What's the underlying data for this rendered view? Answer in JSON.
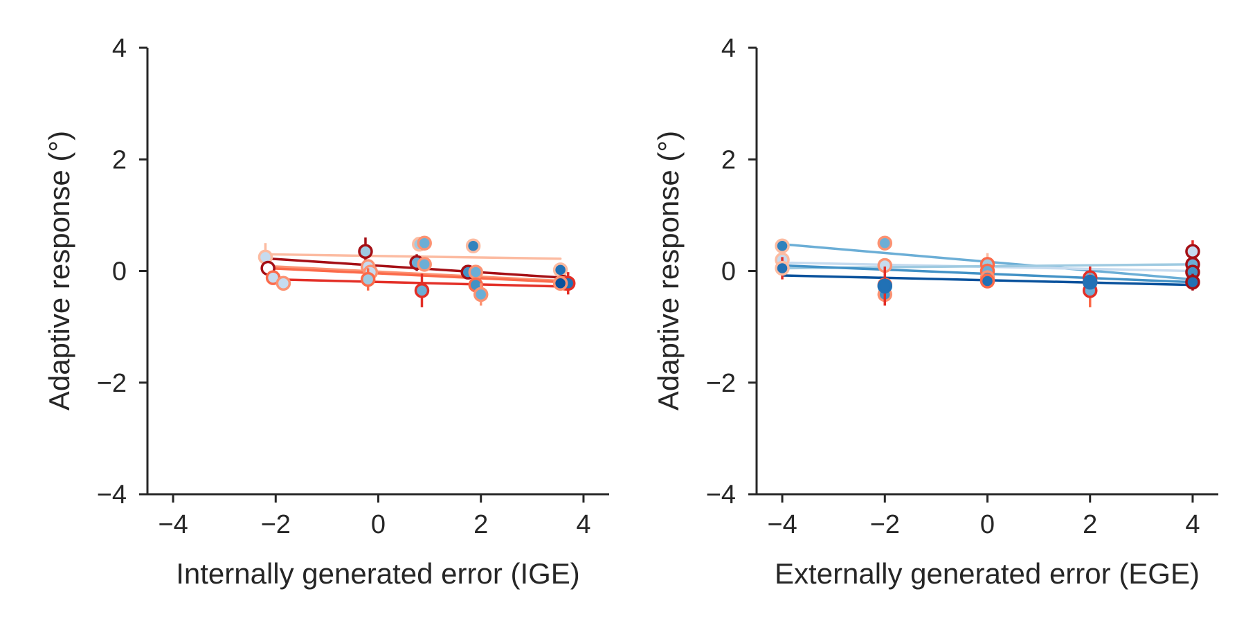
{
  "chart_data": [
    {
      "type": "scatter",
      "xlabel": "Internally generated error (IGE)",
      "ylabel": "Adaptive response (°)",
      "xlim": [
        -4.5,
        4.5
      ],
      "ylim": [
        -4,
        4
      ],
      "xticks": [
        -4,
        -2,
        0,
        2,
        4
      ],
      "yticks": [
        -4,
        -2,
        0,
        2,
        4
      ],
      "xtick_labels": [
        "−4",
        "−2",
        "0",
        "2",
        "4"
      ],
      "ytick_labels": [
        "−4",
        "−2",
        "0",
        "2",
        "4"
      ],
      "grid": false,
      "lines": [
        {
          "color": "#fcbba1",
          "x": [
            -2.2,
            3.55
          ],
          "y": [
            0.3,
            0.22
          ]
        },
        {
          "color": "#a50f15",
          "x": [
            -2.1,
            3.6
          ],
          "y": [
            0.22,
            -0.12
          ]
        },
        {
          "color": "#fc9272",
          "x": [
            -2.0,
            3.65
          ],
          "y": [
            0.08,
            -0.18
          ]
        },
        {
          "color": "#fb6a4a",
          "x": [
            -2.15,
            3.6
          ],
          "y": [
            0.05,
            -0.2
          ]
        },
        {
          "color": "#e32f27",
          "x": [
            -2.0,
            3.7
          ],
          "y": [
            -0.15,
            -0.28
          ]
        }
      ],
      "points": [
        {
          "x": -2.2,
          "y": 0.25,
          "fill": "#c6dbef",
          "edge": "#fcbba1",
          "err": 0.25,
          "errc": "#fcbba1"
        },
        {
          "x": -2.15,
          "y": 0.05,
          "fill": "#ffffff",
          "edge": "#a50f15",
          "err": 0,
          "errc": "#a50f15"
        },
        {
          "x": -2.05,
          "y": -0.12,
          "fill": "#c6dbef",
          "edge": "#fb6a4a",
          "err": 0,
          "errc": "#fb6a4a"
        },
        {
          "x": -1.85,
          "y": -0.22,
          "fill": "#c6dbef",
          "edge": "#fc9272",
          "err": 0,
          "errc": "#fc9272"
        },
        {
          "x": -0.25,
          "y": 0.35,
          "fill": "#9ecae1",
          "edge": "#a50f15",
          "err": 0.25,
          "errc": "#a50f15"
        },
        {
          "x": -0.2,
          "y": 0.08,
          "fill": "#c6dbef",
          "edge": "#fc9272",
          "err": 0,
          "errc": "#fc9272"
        },
        {
          "x": -0.15,
          "y": -0.02,
          "fill": "#c6dbef",
          "edge": "#fc9272",
          "err": 0,
          "errc": "#fc9272"
        },
        {
          "x": -0.2,
          "y": -0.15,
          "fill": "#9ecae1",
          "edge": "#fb6a4a",
          "err": 0.2,
          "errc": "#fb6a4a"
        },
        {
          "x": 0.75,
          "y": 0.15,
          "fill": "#6baed6",
          "edge": "#a50f15",
          "err": 0.15,
          "errc": "#a50f15"
        },
        {
          "x": 0.8,
          "y": 0.48,
          "fill": "#9ecae1",
          "edge": "#fcbba1",
          "err": 0,
          "errc": "#fcbba1"
        },
        {
          "x": 0.9,
          "y": 0.5,
          "fill": "#6baed6",
          "edge": "#fc9272",
          "err": 0,
          "errc": "#fc9272"
        },
        {
          "x": 0.9,
          "y": 0.12,
          "fill": "#6baed6",
          "edge": "#fc9272",
          "err": 0,
          "errc": "#fc9272"
        },
        {
          "x": 0.85,
          "y": -0.35,
          "fill": "#6baed6",
          "edge": "#e32f27",
          "err": 0.3,
          "errc": "#e32f27"
        },
        {
          "x": 1.85,
          "y": 0.45,
          "fill": "#3182bd",
          "edge": "#fcbba1",
          "err": 0,
          "errc": "#fcbba1"
        },
        {
          "x": 1.75,
          "y": -0.02,
          "fill": "#4292c6",
          "edge": "#a50f15",
          "err": 0.1,
          "errc": "#a50f15"
        },
        {
          "x": 1.9,
          "y": -0.02,
          "fill": "#6baed6",
          "edge": "#fc9272",
          "err": 0,
          "errc": "#fc9272"
        },
        {
          "x": 1.9,
          "y": -0.25,
          "fill": "#4292c6",
          "edge": "#fb6a4a",
          "err": 0,
          "errc": "#fb6a4a"
        },
        {
          "x": 2.0,
          "y": -0.42,
          "fill": "#6baed6",
          "edge": "#fc9272",
          "err": 0.2,
          "errc": "#fc9272"
        },
        {
          "x": 3.55,
          "y": 0.02,
          "fill": "#2171b5",
          "edge": "#fcbba1",
          "err": 0.05,
          "errc": "#fcbba1"
        },
        {
          "x": 3.6,
          "y": -0.2,
          "fill": "#2171b5",
          "edge": "#a50f15",
          "err": 0.1,
          "errc": "#a50f15"
        },
        {
          "x": 3.65,
          "y": -0.22,
          "fill": "#2171b5",
          "edge": "#fb6a4a",
          "err": 0.05,
          "errc": "#fb6a4a"
        },
        {
          "x": 3.7,
          "y": -0.22,
          "fill": "#2171b5",
          "edge": "#e32f27",
          "err": 0.2,
          "errc": "#e32f27"
        },
        {
          "x": 3.55,
          "y": -0.22,
          "fill": "#08519c",
          "edge": "#fc9272",
          "err": 0,
          "errc": "#fc9272"
        }
      ]
    },
    {
      "type": "scatter",
      "xlabel": "Externally generated error (EGE)",
      "ylabel": "Adaptive response (°)",
      "xlim": [
        -4.5,
        4.5
      ],
      "ylim": [
        -4,
        4
      ],
      "xticks": [
        -4,
        -2,
        0,
        2,
        4
      ],
      "yticks": [
        -4,
        -2,
        0,
        2,
        4
      ],
      "xtick_labels": [
        "−4",
        "−2",
        "0",
        "2",
        "4"
      ],
      "ytick_labels": [
        "−4",
        "−2",
        "0",
        "2",
        "4"
      ],
      "grid": false,
      "lines": [
        {
          "color": "#6baed6",
          "x": [
            -4,
            4
          ],
          "y": [
            0.48,
            -0.15
          ]
        },
        {
          "color": "#c6dbef",
          "x": [
            -4,
            4
          ],
          "y": [
            0.15,
            0.0
          ]
        },
        {
          "color": "#9ecae1",
          "x": [
            -4,
            4
          ],
          "y": [
            0.05,
            0.12
          ]
        },
        {
          "color": "#4292c6",
          "x": [
            -4,
            4
          ],
          "y": [
            0.1,
            -0.2
          ]
        },
        {
          "color": "#08519c",
          "x": [
            -4,
            4
          ],
          "y": [
            -0.08,
            -0.25
          ]
        }
      ],
      "points": [
        {
          "x": -4,
          "y": 0.45,
          "fill": "#3182bd",
          "edge": "#fcbba1",
          "err": 0.05,
          "errc": "#fcbba1"
        },
        {
          "x": -4,
          "y": 0.2,
          "fill": "#c6dbef",
          "edge": "#fcbba1",
          "err": 0,
          "errc": "#fcbba1"
        },
        {
          "x": -4,
          "y": 0.05,
          "fill": "#2171b5",
          "edge": "#fcbba1",
          "err": 0.2,
          "errc": "#e32f27"
        },
        {
          "x": -2,
          "y": 0.5,
          "fill": "#6baed6",
          "edge": "#fc9272",
          "err": 0,
          "errc": "#fc9272"
        },
        {
          "x": -2,
          "y": 0.1,
          "fill": "#c6dbef",
          "edge": "#fc9272",
          "err": 0,
          "errc": "#fc9272"
        },
        {
          "x": -2,
          "y": -0.25,
          "fill": "#4292c6",
          "edge": "#fb6a4a",
          "err": 0.2,
          "errc": "#fb6a4a"
        },
        {
          "x": -2,
          "y": -0.42,
          "fill": "#4292c6",
          "edge": "#fc9272",
          "err": 0.2,
          "errc": "#fb6a4a"
        },
        {
          "x": -2,
          "y": -0.27,
          "fill": "#2171b5",
          "edge": "#2171b5",
          "err": 0.35,
          "errc": "#e32f27"
        },
        {
          "x": 0,
          "y": 0.12,
          "fill": "#9ecae1",
          "edge": "#fb6a4a",
          "err": 0.2,
          "errc": "#fcbba1"
        },
        {
          "x": 0,
          "y": 0.0,
          "fill": "#6baed6",
          "edge": "#fb6a4a",
          "err": 0,
          "errc": "#fb6a4a"
        },
        {
          "x": 0,
          "y": -0.12,
          "fill": "#4292c6",
          "edge": "#fc9272",
          "err": 0,
          "errc": "#fc9272"
        },
        {
          "x": 0,
          "y": -0.18,
          "fill": "#2171b5",
          "edge": "#fb6a4a",
          "err": 0.1,
          "errc": "#fb6a4a"
        },
        {
          "x": 2,
          "y": -0.12,
          "fill": "#6baed6",
          "edge": "#e32f27",
          "err": 0.2,
          "errc": "#e32f27"
        },
        {
          "x": 2,
          "y": -0.2,
          "fill": "#4292c6",
          "edge": "#e32f27",
          "err": 0,
          "errc": "#e32f27"
        },
        {
          "x": 2,
          "y": -0.35,
          "fill": "#6baed6",
          "edge": "#e32f27",
          "err": 0.3,
          "errc": "#fb6a4a"
        },
        {
          "x": 2,
          "y": -0.2,
          "fill": "#2171b5",
          "edge": "#2171b5",
          "err": 0,
          "errc": "#2171b5"
        },
        {
          "x": 4,
          "y": 0.35,
          "fill": "#c6dbef",
          "edge": "#a50f15",
          "err": 0.2,
          "errc": "#e32f27"
        },
        {
          "x": 4,
          "y": 0.12,
          "fill": "#6baed6",
          "edge": "#a50f15",
          "err": 0,
          "errc": "#a50f15"
        },
        {
          "x": 4,
          "y": -0.02,
          "fill": "#4292c6",
          "edge": "#a50f15",
          "err": 0,
          "errc": "#a50f15"
        },
        {
          "x": 4,
          "y": -0.2,
          "fill": "#2171b5",
          "edge": "#a50f15",
          "err": 0.15,
          "errc": "#a50f15"
        }
      ]
    }
  ]
}
